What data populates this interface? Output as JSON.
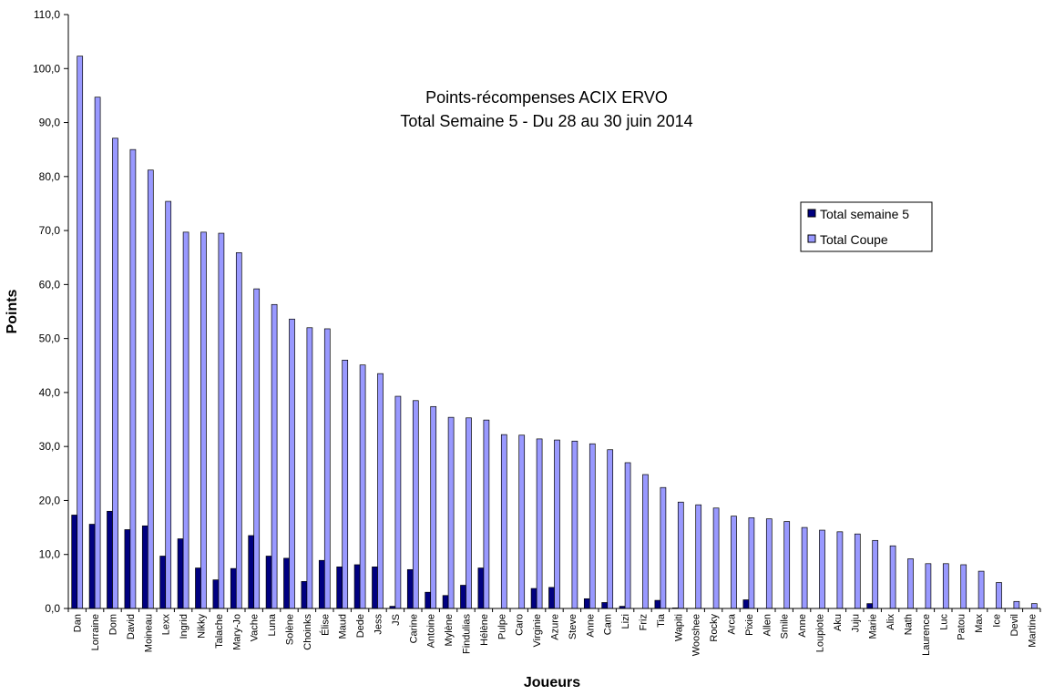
{
  "chart_data": {
    "type": "bar",
    "title": [
      "Points-récompenses ACIX ERVO",
      "Total Semaine 5 - Du 28 au 30 juin 2014"
    ],
    "xlabel": "Joueurs",
    "ylabel": "Points",
    "ylim": [
      0,
      110
    ],
    "ytick_step": 10,
    "ytick_format": "0,0",
    "grid": false,
    "legend_position": "right",
    "colors": {
      "Total semaine 5": "#000080",
      "Total Coupe": "#9999ff"
    },
    "categories": [
      "Dan",
      "Lorraine",
      "Dom",
      "David",
      "Moineau",
      "Lexx",
      "Ingrid",
      "Nikky",
      "Talache",
      "Mary-Jo",
      "Vache",
      "Luna",
      "Solène",
      "Choinks",
      "Élise",
      "Maud",
      "Dede",
      "Jess",
      "JS",
      "Carine",
      "Antoine",
      "Mylène",
      "Findulias",
      "Hélène",
      "Pulpe",
      "Caro",
      "Virginie",
      "Azure",
      "Steve",
      "Anne",
      "Cam",
      "Lizi",
      "Friz",
      "Tia",
      "Wapiti",
      "Wooshee",
      "Rocky",
      "Arca",
      "Pixie",
      "Allen",
      "Smile",
      "Anne",
      "Loupiote",
      "Aku",
      "Juju",
      "Marie",
      "Alix",
      "Nath",
      "Laurence",
      "Luc",
      "Patou",
      "Max",
      "Ice",
      "Devil",
      "Martine"
    ],
    "series": [
      {
        "name": "Total semaine 5",
        "values": [
          17.3,
          15.6,
          18.0,
          14.6,
          15.3,
          9.7,
          12.9,
          7.5,
          5.3,
          7.4,
          13.5,
          9.7,
          9.3,
          5.0,
          8.9,
          7.7,
          8.1,
          7.7,
          0.4,
          7.2,
          3.0,
          2.4,
          4.3,
          7.5,
          0,
          0,
          3.7,
          3.9,
          0,
          1.8,
          1.1,
          0.4,
          0,
          1.5,
          0.1,
          0,
          0,
          0,
          1.6,
          0,
          0,
          0,
          0,
          0,
          0,
          0.9,
          0,
          0,
          0,
          0,
          0,
          0,
          0,
          0,
          0
        ]
      },
      {
        "name": "Total Coupe",
        "values": [
          102.3,
          94.7,
          87.1,
          85.0,
          81.2,
          75.4,
          69.7,
          69.7,
          69.5,
          65.9,
          59.2,
          56.3,
          53.6,
          52.0,
          51.8,
          46.0,
          45.1,
          43.5,
          39.3,
          38.5,
          37.4,
          35.4,
          35.3,
          34.9,
          32.2,
          32.1,
          31.4,
          31.2,
          31.0,
          30.5,
          29.4,
          27.0,
          24.8,
          22.4,
          19.7,
          19.2,
          18.6,
          17.1,
          16.8,
          16.6,
          16.1,
          15.0,
          14.5,
          14.2,
          13.8,
          12.6,
          11.6,
          9.2,
          8.3,
          8.3,
          8.1,
          6.9,
          4.8,
          1.3,
          0.9
        ]
      }
    ]
  }
}
